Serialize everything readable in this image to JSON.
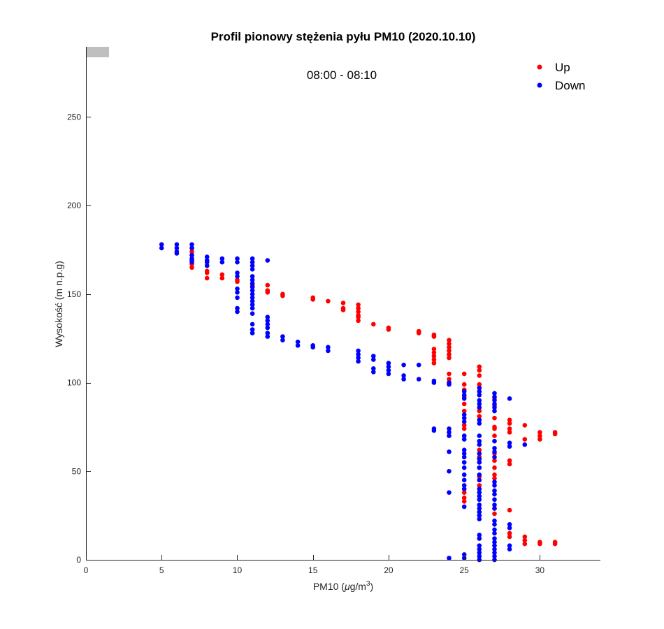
{
  "chart_data": {
    "type": "scatter",
    "title": "Profil pionowy stężenia pyłu PM10 (2020.10.10)",
    "subtitle": "08:00 - 08:10",
    "xlabel": "PM10 (μg/m³)",
    "xlabel_parts": {
      "main": "PM10 (",
      "mu": "μ",
      "unit": "g/m",
      "sup": "3",
      "close": ")"
    },
    "ylabel": "Wysokość (m n.p.g)",
    "xlim": [
      0,
      34
    ],
    "ylim": [
      0,
      288
    ],
    "xticks": [
      0,
      5,
      10,
      15,
      20,
      25,
      30
    ],
    "yticks": [
      0,
      50,
      100,
      150,
      200,
      250
    ],
    "grid": false,
    "legend": {
      "placement": "top-right",
      "entries": [
        {
          "name": "Up",
          "color": "#ff0000"
        },
        {
          "name": "Down",
          "color": "#0000ff"
        }
      ]
    },
    "series": [
      {
        "name": "Up",
        "color": "#ff0000",
        "points": [
          [
            7,
            176
          ],
          [
            7,
            174
          ],
          [
            7,
            172
          ],
          [
            7,
            167
          ],
          [
            7,
            165
          ],
          [
            8,
            166
          ],
          [
            8,
            163
          ],
          [
            8,
            162
          ],
          [
            8,
            159
          ],
          [
            9,
            161
          ],
          [
            9,
            159
          ],
          [
            10,
            158
          ],
          [
            10,
            157
          ],
          [
            11,
            155
          ],
          [
            12,
            155
          ],
          [
            12,
            152
          ],
          [
            12,
            151
          ],
          [
            13,
            150
          ],
          [
            13,
            149
          ],
          [
            15,
            148
          ],
          [
            15,
            147
          ],
          [
            16,
            146
          ],
          [
            17,
            145
          ],
          [
            17,
            142
          ],
          [
            17,
            141
          ],
          [
            18,
            144
          ],
          [
            18,
            142
          ],
          [
            18,
            140
          ],
          [
            18,
            138
          ],
          [
            18,
            137
          ],
          [
            18,
            135
          ],
          [
            19,
            133
          ],
          [
            20,
            131
          ],
          [
            20,
            130
          ],
          [
            22,
            129
          ],
          [
            22,
            128
          ],
          [
            23,
            127
          ],
          [
            23,
            126
          ],
          [
            23,
            119
          ],
          [
            23,
            117
          ],
          [
            23,
            115
          ],
          [
            23,
            113
          ],
          [
            23,
            111
          ],
          [
            24,
            124
          ],
          [
            24,
            122
          ],
          [
            24,
            120
          ],
          [
            24,
            118
          ],
          [
            24,
            116
          ],
          [
            24,
            114
          ],
          [
            24,
            105
          ],
          [
            24,
            102
          ],
          [
            24,
            100
          ],
          [
            25,
            105
          ],
          [
            25,
            99
          ],
          [
            25,
            96
          ],
          [
            25,
            92
          ],
          [
            25,
            88
          ],
          [
            25,
            84
          ],
          [
            25,
            76
          ],
          [
            25,
            74
          ],
          [
            25,
            38
          ],
          [
            25,
            35
          ],
          [
            25,
            33
          ],
          [
            26,
            109
          ],
          [
            26,
            107
          ],
          [
            26,
            104
          ],
          [
            26,
            99
          ],
          [
            26,
            95
          ],
          [
            26,
            84
          ],
          [
            26,
            81
          ],
          [
            26,
            62
          ],
          [
            26,
            58
          ],
          [
            26,
            52
          ],
          [
            26,
            47
          ],
          [
            26,
            42
          ],
          [
            27,
            91
          ],
          [
            27,
            87
          ],
          [
            27,
            80
          ],
          [
            27,
            75
          ],
          [
            27,
            74
          ],
          [
            27,
            70
          ],
          [
            27,
            60
          ],
          [
            27,
            56
          ],
          [
            27,
            52
          ],
          [
            27,
            48
          ],
          [
            27,
            46
          ],
          [
            27,
            29
          ],
          [
            27,
            26
          ],
          [
            28,
            79
          ],
          [
            28,
            77
          ],
          [
            28,
            74
          ],
          [
            28,
            72
          ],
          [
            28,
            56
          ],
          [
            28,
            54
          ],
          [
            28,
            28
          ],
          [
            28,
            15
          ],
          [
            28,
            13
          ],
          [
            29,
            76
          ],
          [
            29,
            68
          ],
          [
            29,
            13
          ],
          [
            29,
            11
          ],
          [
            29,
            9
          ],
          [
            30,
            72
          ],
          [
            30,
            70
          ],
          [
            30,
            68
          ],
          [
            30,
            10
          ],
          [
            30,
            9
          ],
          [
            31,
            72
          ],
          [
            31,
            71
          ],
          [
            31,
            10
          ],
          [
            31,
            9
          ]
        ]
      },
      {
        "name": "Down",
        "color": "#0000ff",
        "points": [
          [
            5,
            178
          ],
          [
            5,
            176
          ],
          [
            6,
            178
          ],
          [
            6,
            176
          ],
          [
            6,
            174
          ],
          [
            6,
            173
          ],
          [
            7,
            178
          ],
          [
            7,
            176
          ],
          [
            7,
            172
          ],
          [
            7,
            170
          ],
          [
            7,
            169
          ],
          [
            7,
            168
          ],
          [
            8,
            171
          ],
          [
            8,
            169
          ],
          [
            8,
            168
          ],
          [
            8,
            166
          ],
          [
            9,
            170
          ],
          [
            9,
            168
          ],
          [
            10,
            170
          ],
          [
            10,
            168
          ],
          [
            10,
            162
          ],
          [
            10,
            160
          ],
          [
            10,
            153
          ],
          [
            10,
            151
          ],
          [
            10,
            148
          ],
          [
            10,
            142
          ],
          [
            10,
            140
          ],
          [
            11,
            170
          ],
          [
            11,
            168
          ],
          [
            11,
            166
          ],
          [
            11,
            164
          ],
          [
            11,
            160
          ],
          [
            11,
            158
          ],
          [
            11,
            156
          ],
          [
            11,
            154
          ],
          [
            11,
            152
          ],
          [
            11,
            150
          ],
          [
            11,
            148
          ],
          [
            11,
            146
          ],
          [
            11,
            144
          ],
          [
            11,
            142
          ],
          [
            11,
            139
          ],
          [
            11,
            133
          ],
          [
            11,
            130
          ],
          [
            11,
            128
          ],
          [
            12,
            169
          ],
          [
            12,
            137
          ],
          [
            12,
            135
          ],
          [
            12,
            133
          ],
          [
            12,
            131
          ],
          [
            12,
            128
          ],
          [
            12,
            126
          ],
          [
            13,
            126
          ],
          [
            13,
            124
          ],
          [
            14,
            123
          ],
          [
            14,
            121
          ],
          [
            15,
            121
          ],
          [
            15,
            120
          ],
          [
            16,
            120
          ],
          [
            16,
            118
          ],
          [
            18,
            118
          ],
          [
            18,
            116
          ],
          [
            18,
            114
          ],
          [
            18,
            112
          ],
          [
            19,
            115
          ],
          [
            19,
            113
          ],
          [
            19,
            108
          ],
          [
            19,
            106
          ],
          [
            20,
            111
          ],
          [
            20,
            109
          ],
          [
            20,
            107
          ],
          [
            20,
            105
          ],
          [
            21,
            110
          ],
          [
            21,
            104
          ],
          [
            21,
            102
          ],
          [
            22,
            110
          ],
          [
            22,
            102
          ],
          [
            23,
            101
          ],
          [
            23,
            100
          ],
          [
            23,
            74
          ],
          [
            23,
            73
          ],
          [
            24,
            100
          ],
          [
            24,
            99
          ],
          [
            24,
            74
          ],
          [
            24,
            72
          ],
          [
            24,
            70
          ],
          [
            24,
            61
          ],
          [
            24,
            50
          ],
          [
            24,
            38
          ],
          [
            24,
            1
          ],
          [
            25,
            95
          ],
          [
            25,
            93
          ],
          [
            25,
            91
          ],
          [
            25,
            82
          ],
          [
            25,
            80
          ],
          [
            25,
            78
          ],
          [
            25,
            70
          ],
          [
            25,
            68
          ],
          [
            25,
            62
          ],
          [
            25,
            60
          ],
          [
            25,
            58
          ],
          [
            25,
            55
          ],
          [
            25,
            52
          ],
          [
            25,
            48
          ],
          [
            25,
            45
          ],
          [
            25,
            42
          ],
          [
            25,
            40
          ],
          [
            25,
            30
          ],
          [
            25,
            3
          ],
          [
            25,
            1
          ],
          [
            26,
            97
          ],
          [
            26,
            95
          ],
          [
            26,
            93
          ],
          [
            26,
            90
          ],
          [
            26,
            88
          ],
          [
            26,
            86
          ],
          [
            26,
            79
          ],
          [
            26,
            77
          ],
          [
            26,
            70
          ],
          [
            26,
            67
          ],
          [
            26,
            65
          ],
          [
            26,
            60
          ],
          [
            26,
            57
          ],
          [
            26,
            55
          ],
          [
            26,
            52
          ],
          [
            26,
            48
          ],
          [
            26,
            45
          ],
          [
            26,
            40
          ],
          [
            26,
            38
          ],
          [
            26,
            36
          ],
          [
            26,
            34
          ],
          [
            26,
            31
          ],
          [
            26,
            29
          ],
          [
            26,
            27
          ],
          [
            26,
            25
          ],
          [
            26,
            23
          ],
          [
            26,
            14
          ],
          [
            26,
            12
          ],
          [
            26,
            8
          ],
          [
            26,
            6
          ],
          [
            26,
            4
          ],
          [
            26,
            2
          ],
          [
            26,
            0
          ],
          [
            27,
            94
          ],
          [
            27,
            92
          ],
          [
            27,
            90
          ],
          [
            27,
            88
          ],
          [
            27,
            86
          ],
          [
            27,
            84
          ],
          [
            27,
            67
          ],
          [
            27,
            63
          ],
          [
            27,
            61
          ],
          [
            27,
            58
          ],
          [
            27,
            44
          ],
          [
            27,
            42
          ],
          [
            27,
            39
          ],
          [
            27,
            37
          ],
          [
            27,
            34
          ],
          [
            27,
            31
          ],
          [
            27,
            29
          ],
          [
            27,
            22
          ],
          [
            27,
            20
          ],
          [
            27,
            17
          ],
          [
            27,
            15
          ],
          [
            27,
            12
          ],
          [
            27,
            10
          ],
          [
            27,
            8
          ],
          [
            27,
            6
          ],
          [
            27,
            4
          ],
          [
            27,
            2
          ],
          [
            27,
            0
          ],
          [
            28,
            91
          ],
          [
            28,
            66
          ],
          [
            28,
            64
          ],
          [
            28,
            20
          ],
          [
            28,
            18
          ],
          [
            28,
            8
          ],
          [
            28,
            6
          ],
          [
            29,
            65
          ]
        ]
      }
    ]
  }
}
